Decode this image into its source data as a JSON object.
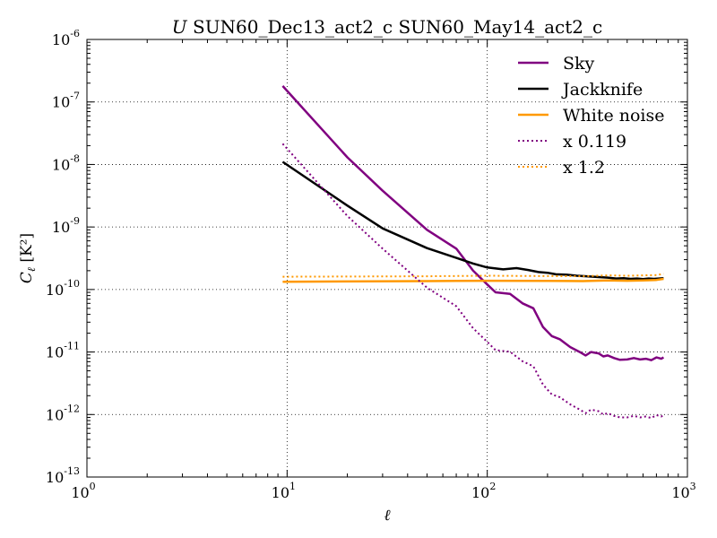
{
  "chart_data": {
    "type": "line",
    "title_prefix": "U",
    "title_suffix": " SUN60_Dec13_act2_c SUN60_May14_act2_c",
    "xlabel": "ℓ",
    "ylabel_main": "C",
    "ylabel_sub": "ℓ",
    "ylabel_unit": " [K²]",
    "x_scale": "log",
    "y_scale": "log",
    "xlim": [
      1,
      1000
    ],
    "ylim": [
      1e-13,
      1e-06
    ],
    "x_ticks": [
      {
        "value": 1,
        "base": "10",
        "exp": "0"
      },
      {
        "value": 10,
        "base": "10",
        "exp": "1"
      },
      {
        "value": 100,
        "base": "10",
        "exp": "2"
      },
      {
        "value": 1000,
        "base": "10",
        "exp": "3"
      }
    ],
    "y_ticks": [
      {
        "value": 1e-13,
        "base": "10",
        "exp": "-13"
      },
      {
        "value": 1e-12,
        "base": "10",
        "exp": "-12"
      },
      {
        "value": 1e-11,
        "base": "10",
        "exp": "-11"
      },
      {
        "value": 1e-10,
        "base": "10",
        "exp": "-10"
      },
      {
        "value": 1e-09,
        "base": "10",
        "exp": "-9"
      },
      {
        "value": 1e-08,
        "base": "10",
        "exp": "-8"
      },
      {
        "value": 1e-07,
        "base": "10",
        "exp": "-7"
      },
      {
        "value": 1e-06,
        "base": "10",
        "exp": "-6"
      }
    ],
    "grid": true,
    "legend_position": "top-right",
    "series": [
      {
        "name": "Sky",
        "color": "#800080",
        "style": "solid",
        "points": [
          [
            9.5,
            1.8e-07
          ],
          [
            20,
            1.3e-08
          ],
          [
            30,
            3.8e-09
          ],
          [
            50,
            9e-10
          ],
          [
            70,
            4.5e-10
          ],
          [
            85,
            2e-10
          ],
          [
            100,
            1.2e-10
          ],
          [
            110,
            9e-11
          ],
          [
            130,
            8.5e-11
          ],
          [
            150,
            6e-11
          ],
          [
            170,
            5e-11
          ],
          [
            190,
            2.5e-11
          ],
          [
            210,
            1.8e-11
          ],
          [
            230,
            1.6e-11
          ],
          [
            260,
            1.2e-11
          ],
          [
            290,
            1e-11
          ],
          [
            310,
            8.8e-12
          ],
          [
            330,
            1e-11
          ],
          [
            360,
            9.5e-12
          ],
          [
            380,
            8.5e-12
          ],
          [
            400,
            8.8e-12
          ],
          [
            430,
            8e-12
          ],
          [
            460,
            7.5e-12
          ],
          [
            500,
            7.6e-12
          ],
          [
            540,
            8e-12
          ],
          [
            580,
            7.6e-12
          ],
          [
            620,
            7.8e-12
          ],
          [
            660,
            7.4e-12
          ],
          [
            700,
            8.2e-12
          ],
          [
            740,
            7.8e-12
          ],
          [
            760,
            8.2e-12
          ]
        ]
      },
      {
        "name": "Jackknife",
        "color": "#000000",
        "style": "solid",
        "points": [
          [
            9.5,
            1.1e-08
          ],
          [
            20,
            2.2e-09
          ],
          [
            30,
            9.5e-10
          ],
          [
            50,
            4.6e-10
          ],
          [
            70,
            3.2e-10
          ],
          [
            85,
            2.6e-10
          ],
          [
            100,
            2.25e-10
          ],
          [
            120,
            2.1e-10
          ],
          [
            140,
            2.2e-10
          ],
          [
            160,
            2.05e-10
          ],
          [
            180,
            1.9e-10
          ],
          [
            200,
            1.85e-10
          ],
          [
            220,
            1.75e-10
          ],
          [
            250,
            1.72e-10
          ],
          [
            280,
            1.66e-10
          ],
          [
            320,
            1.62e-10
          ],
          [
            360,
            1.58e-10
          ],
          [
            400,
            1.55e-10
          ],
          [
            440,
            1.5e-10
          ],
          [
            480,
            1.52e-10
          ],
          [
            520,
            1.48e-10
          ],
          [
            560,
            1.5e-10
          ],
          [
            600,
            1.47e-10
          ],
          [
            640,
            1.5e-10
          ],
          [
            680,
            1.48e-10
          ],
          [
            720,
            1.5e-10
          ],
          [
            760,
            1.52e-10
          ]
        ]
      },
      {
        "name": "White noise",
        "color": "#ff9900",
        "style": "solid",
        "points": [
          [
            9.5,
            1.33e-10
          ],
          [
            50,
            1.36e-10
          ],
          [
            100,
            1.38e-10
          ],
          [
            200,
            1.37e-10
          ],
          [
            300,
            1.36e-10
          ],
          [
            400,
            1.4e-10
          ],
          [
            500,
            1.38e-10
          ],
          [
            600,
            1.4e-10
          ],
          [
            700,
            1.42e-10
          ],
          [
            760,
            1.48e-10
          ]
        ]
      },
      {
        "name": "x 0.119",
        "color": "#800080",
        "style": "dotted",
        "points": [
          [
            9.5,
            2.15e-08
          ],
          [
            20,
            1.5e-09
          ],
          [
            30,
            4.5e-10
          ],
          [
            50,
            1.07e-10
          ],
          [
            70,
            5.4e-11
          ],
          [
            85,
            2.4e-11
          ],
          [
            100,
            1.45e-11
          ],
          [
            110,
            1.07e-11
          ],
          [
            130,
            1.01e-11
          ],
          [
            150,
            7.1e-12
          ],
          [
            170,
            5.9e-12
          ],
          [
            190,
            3e-12
          ],
          [
            210,
            2.1e-12
          ],
          [
            230,
            1.9e-12
          ],
          [
            260,
            1.45e-12
          ],
          [
            290,
            1.2e-12
          ],
          [
            310,
            1.05e-12
          ],
          [
            330,
            1.2e-12
          ],
          [
            360,
            1.13e-12
          ],
          [
            380,
            1e-12
          ],
          [
            400,
            1.05e-12
          ],
          [
            430,
            9.5e-13
          ],
          [
            460,
            9e-13
          ],
          [
            500,
            9e-13
          ],
          [
            540,
            9.5e-13
          ],
          [
            580,
            9e-13
          ],
          [
            620,
            9.3e-13
          ],
          [
            660,
            8.8e-13
          ],
          [
            700,
            9.8e-13
          ],
          [
            740,
            9.3e-13
          ],
          [
            760,
            9.8e-13
          ]
        ]
      },
      {
        "name": "x 1.2",
        "color": "#ff9900",
        "style": "dotted",
        "points": [
          [
            9.5,
            1.6e-10
          ],
          [
            50,
            1.63e-10
          ],
          [
            100,
            1.66e-10
          ],
          [
            200,
            1.64e-10
          ],
          [
            300,
            1.63e-10
          ],
          [
            400,
            1.68e-10
          ],
          [
            500,
            1.66e-10
          ],
          [
            600,
            1.68e-10
          ],
          [
            700,
            1.7e-10
          ],
          [
            760,
            1.78e-10
          ]
        ]
      }
    ]
  }
}
